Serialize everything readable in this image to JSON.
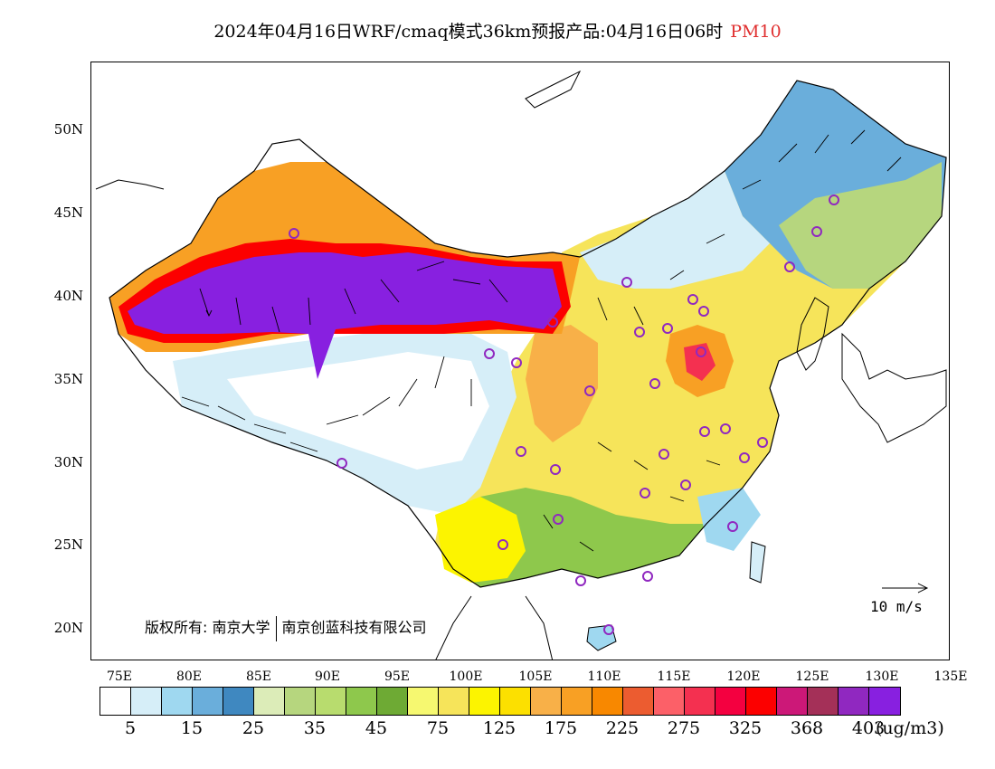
{
  "title": {
    "main": "2024年04月16日WRF/cmaq模式36km预报产品:04月16日06时",
    "variable": "PM10",
    "variable_color": "#e03030"
  },
  "axes": {
    "lat_labels": [
      "50N",
      "45N",
      "40N",
      "35N",
      "30N",
      "25N",
      "20N"
    ],
    "lat_values": [
      50,
      45,
      40,
      35,
      30,
      25,
      20
    ],
    "lon_labels": [
      "75E",
      "80E",
      "85E",
      "90E",
      "95E",
      "100E",
      "105E",
      "110E",
      "115E",
      "120E",
      "125E",
      "130E",
      "135E"
    ],
    "lon_values": [
      75,
      80,
      85,
      90,
      95,
      100,
      105,
      110,
      115,
      120,
      125,
      130,
      135
    ],
    "lon_range": [
      73,
      135
    ],
    "lat_range": [
      18,
      54
    ]
  },
  "copyright": {
    "prefix": "版权所有:",
    "org1": "南京大学",
    "org2": "南京创蓝科技有限公司"
  },
  "wind_reference": {
    "label": "10 m/s"
  },
  "colorbar": {
    "colors": [
      "#ffffff",
      "#d6eef8",
      "#9fd8f0",
      "#6aaedb",
      "#3f88c0",
      "#dcecb8",
      "#b6d67e",
      "#b8dc6e",
      "#8ec84c",
      "#6eaa34",
      "#f6f870",
      "#f6e45a",
      "#fcf400",
      "#fce000",
      "#f8b048",
      "#f8a024",
      "#f88800",
      "#ec5c30",
      "#fc6068",
      "#f43050",
      "#f40040",
      "#fc0000",
      "#cc1878",
      "#a43058",
      "#9028c0",
      "#8820e0"
    ],
    "labels": [
      "5",
      "15",
      "25",
      "35",
      "45",
      "75",
      "125",
      "175",
      "225",
      "275",
      "325",
      "368",
      "403"
    ],
    "label_box_index": [
      1,
      3,
      5,
      7,
      9,
      11,
      13,
      15,
      17,
      19,
      21,
      23,
      25
    ],
    "unit": "(ug/m3)"
  }
}
